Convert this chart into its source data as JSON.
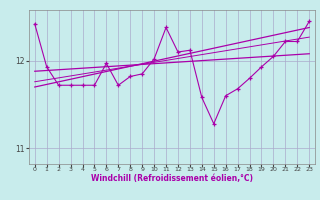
{
  "xlabel": "Windchill (Refroidissement éolien,°C)",
  "bg_color": "#c8ecec",
  "line_color": "#aa00aa",
  "grid_color": "#aaaacc",
  "xlim": [
    -0.5,
    23.5
  ],
  "ylim": [
    10.82,
    12.58
  ],
  "yticks": [
    11,
    12
  ],
  "xticks": [
    0,
    1,
    2,
    3,
    4,
    5,
    6,
    7,
    8,
    9,
    10,
    11,
    12,
    13,
    14,
    15,
    16,
    17,
    18,
    19,
    20,
    21,
    22,
    23
  ],
  "data_x": [
    0,
    1,
    2,
    3,
    4,
    5,
    6,
    7,
    8,
    9,
    10,
    11,
    12,
    13,
    14,
    15,
    16,
    17,
    18,
    19,
    20,
    21,
    22,
    23
  ],
  "data_y": [
    12.42,
    11.93,
    11.72,
    11.72,
    11.72,
    11.72,
    11.97,
    11.72,
    11.82,
    11.85,
    12.02,
    12.38,
    12.1,
    12.12,
    11.58,
    11.28,
    11.6,
    11.68,
    11.8,
    11.93,
    12.05,
    12.22,
    12.22,
    12.45
  ],
  "trend1_x": [
    0,
    23
  ],
  "trend1_y": [
    11.88,
    12.08
  ],
  "trend2_x": [
    0,
    23
  ],
  "trend2_y": [
    11.7,
    12.38
  ],
  "trend3_x": [
    0,
    23
  ],
  "trend3_y": [
    11.76,
    12.27
  ]
}
